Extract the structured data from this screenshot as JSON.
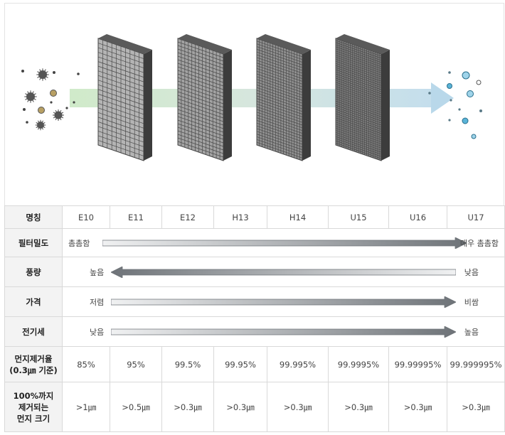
{
  "columns": [
    "E10",
    "E11",
    "E12",
    "H13",
    "H14",
    "U15",
    "U16",
    "U17"
  ],
  "rows": {
    "name_header": "명칭",
    "density": {
      "header": "필터밀도",
      "start": "촘촘함",
      "end": "매우 촘촘함"
    },
    "airflow": {
      "header": "풍량",
      "start": "높음",
      "end": "낮음"
    },
    "price": {
      "header": "가격",
      "start": "저렴",
      "end": "비쌈"
    },
    "power": {
      "header": "전기세",
      "start": "낮음",
      "end": "높음"
    },
    "removal": {
      "header_line1": "먼지제거율",
      "header_line2": "(0.3㎛ 기준)",
      "values": [
        "85%",
        "95%",
        "99.5%",
        "99.95%",
        "99.995%",
        "99.9995%",
        "99.99995%",
        "99.999995%"
      ]
    },
    "size": {
      "header_line1": "100%까지",
      "header_line2": "제거되는",
      "header_line3": "먼지 크기",
      "values": [
        ">1㎛",
        ">0.5㎛",
        ">0.3㎛",
        ">0.3㎛",
        ">0.3㎛",
        ">0.3㎛",
        ">0.3㎛",
        ">0.3㎛"
      ]
    }
  },
  "colors": {
    "arrow_dark": "#6e7378",
    "arrow_light": "#f0f1f2",
    "dust_dark": "#555555",
    "dust_gold": "#b8a064",
    "clean_blue": "#5ab4d8"
  }
}
